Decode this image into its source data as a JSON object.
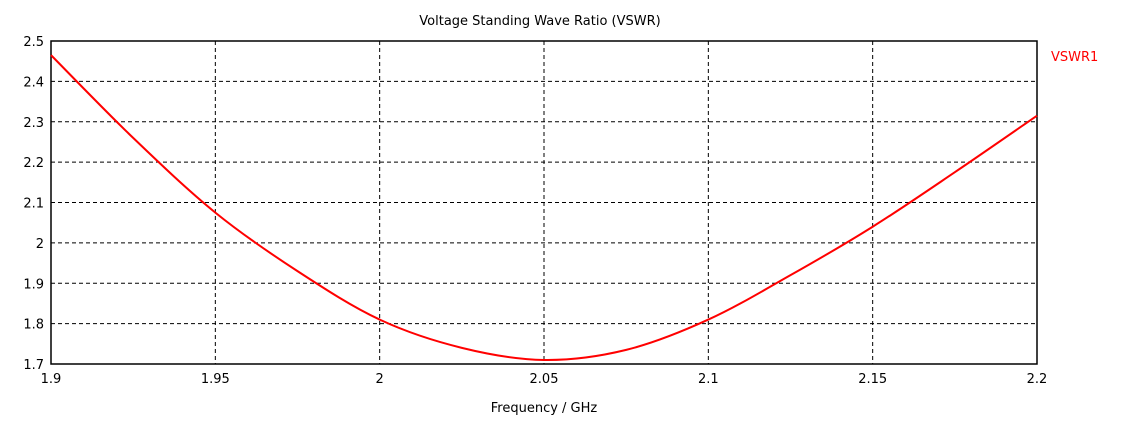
{
  "chart_data": {
    "type": "line",
    "title": "Voltage Standing Wave Ratio (VSWR)",
    "xlabel": "Frequency / GHz",
    "ylabel": "",
    "xlim": [
      1.9,
      2.2
    ],
    "ylim": [
      1.7,
      2.5
    ],
    "grid": true,
    "legend_placement": "right",
    "xticks": [
      "1.9",
      "1.95",
      "2",
      "2.05",
      "2.1",
      "2.15",
      "2.2"
    ],
    "yticks": [
      "1.7",
      "1.8",
      "1.9",
      "2",
      "2.1",
      "2.2",
      "2.3",
      "2.4",
      "2.5"
    ],
    "series": [
      {
        "name": "VSWR1",
        "color": "#ff0000",
        "x": [
          1.9,
          1.925,
          1.95,
          1.975,
          2.0,
          2.025,
          2.05,
          2.075,
          2.1,
          2.125,
          2.15,
          2.175,
          2.2
        ],
        "y": [
          2.465,
          2.26,
          2.075,
          1.93,
          1.81,
          1.74,
          1.71,
          1.735,
          1.81,
          1.92,
          2.04,
          2.175,
          2.315
        ]
      }
    ]
  }
}
